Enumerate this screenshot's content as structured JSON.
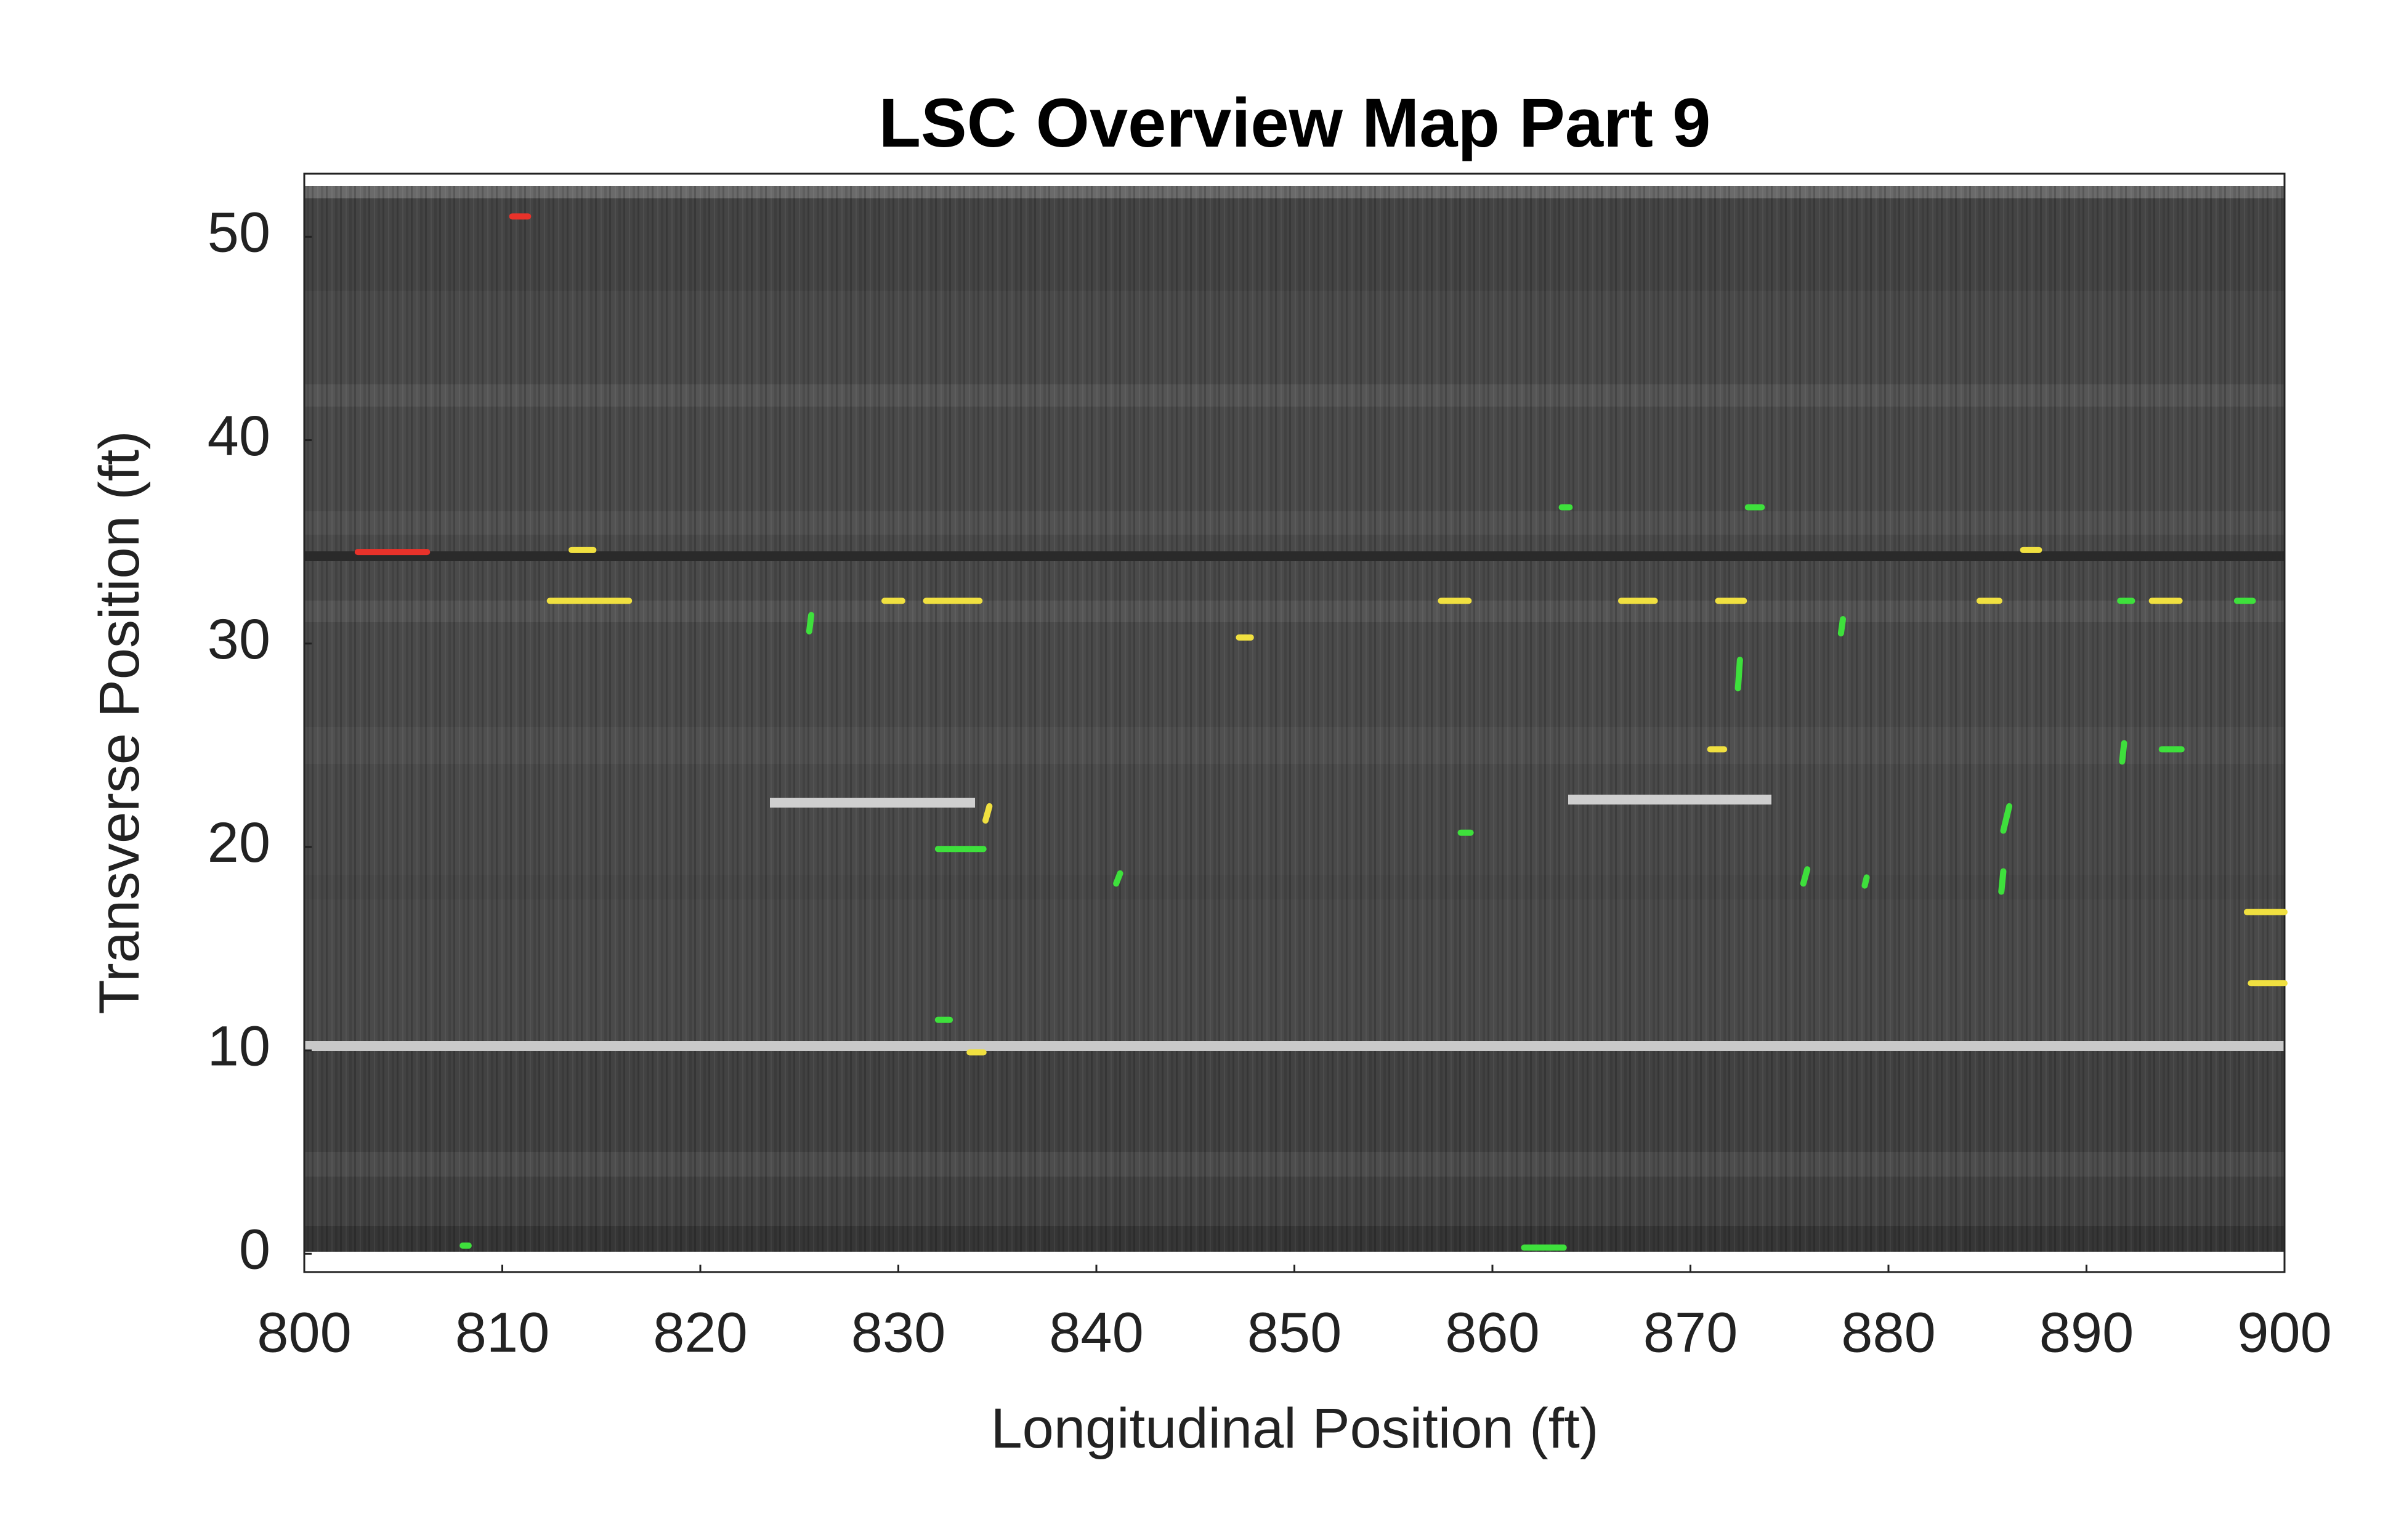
{
  "chart_data": {
    "type": "segments",
    "title": "LSC Overview Map Part 9",
    "x_label": "Longitudinal Position (ft)",
    "y_label": "Transverse Position (ft)",
    "xlim": [
      800,
      900
    ],
    "ylim": [
      -0.9,
      53.1
    ],
    "xticks": [
      800,
      810,
      820,
      830,
      840,
      850,
      860,
      870,
      880,
      890,
      900
    ],
    "yticks": [
      0,
      10,
      20,
      30,
      40,
      50
    ],
    "segments": [
      {
        "x": [
          810.5,
          811.3
        ],
        "y": [
          51,
          51
        ],
        "color": "#e8322a"
      },
      {
        "x": [
          802.7,
          806.2
        ],
        "y": [
          34.5,
          34.5
        ],
        "color": "#e8322a"
      },
      {
        "x": [
          813.5,
          814.6
        ],
        "y": [
          34.6,
          34.6
        ],
        "color": "#f0e040"
      },
      {
        "x": [
          812.4,
          816.4
        ],
        "y": [
          32.1,
          32.1
        ],
        "color": "#f0e040"
      },
      {
        "x": [
          829.3,
          830.2
        ],
        "y": [
          32.1,
          32.1
        ],
        "color": "#f0e040"
      },
      {
        "x": [
          831.4,
          834.1
        ],
        "y": [
          32.1,
          32.1
        ],
        "color": "#f0e040"
      },
      {
        "x": [
          825.5,
          825.6
        ],
        "y": [
          30.6,
          31.4
        ],
        "color": "#3ee03c"
      },
      {
        "x": [
          847.2,
          847.8
        ],
        "y": [
          30.3,
          30.3
        ],
        "color": "#f0e040"
      },
      {
        "x": [
          857.4,
          858.8
        ],
        "y": [
          32.1,
          32.1
        ],
        "color": "#f0e040"
      },
      {
        "x": [
          863.5,
          863.9
        ],
        "y": [
          36.7,
          36.7
        ],
        "color": "#3ee03c"
      },
      {
        "x": [
          872.9,
          873.6
        ],
        "y": [
          36.7,
          36.7
        ],
        "color": "#3ee03c"
      },
      {
        "x": [
          866.5,
          868.2
        ],
        "y": [
          32.1,
          32.1
        ],
        "color": "#f0e040"
      },
      {
        "x": [
          871.4,
          872.7
        ],
        "y": [
          32.1,
          32.1
        ],
        "color": "#f0e040"
      },
      {
        "x": [
          886.8,
          887.6
        ],
        "y": [
          34.6,
          34.6
        ],
        "color": "#f0e040"
      },
      {
        "x": [
          884.6,
          885.6
        ],
        "y": [
          32.1,
          32.1
        ],
        "color": "#f0e040"
      },
      {
        "x": [
          891.7,
          892.3
        ],
        "y": [
          32.1,
          32.1
        ],
        "color": "#3ee03c"
      },
      {
        "x": [
          893.3,
          894.7
        ],
        "y": [
          32.1,
          32.1
        ],
        "color": "#f0e040"
      },
      {
        "x": [
          897.6,
          898.4
        ],
        "y": [
          32.1,
          32.1
        ],
        "color": "#3ee03c"
      },
      {
        "x": [
          877.6,
          877.7
        ],
        "y": [
          30.5,
          31.2
        ],
        "color": "#3ee03c"
      },
      {
        "x": [
          872.4,
          872.5
        ],
        "y": [
          27.8,
          29.2
        ],
        "color": "#3ee03c"
      },
      {
        "x": [
          871.0,
          871.7
        ],
        "y": [
          24.8,
          24.8
        ],
        "color": "#f0e040"
      },
      {
        "x": [
          891.8,
          891.9
        ],
        "y": [
          24.2,
          25.1
        ],
        "color": "#3ee03c"
      },
      {
        "x": [
          893.8,
          894.8
        ],
        "y": [
          24.8,
          24.8
        ],
        "color": "#3ee03c"
      },
      {
        "x": [
          834.4,
          834.6
        ],
        "y": [
          21.3,
          22.0
        ],
        "color": "#f0e040"
      },
      {
        "x": [
          832.0,
          834.3
        ],
        "y": [
          19.9,
          19.9
        ],
        "color": "#3ee03c"
      },
      {
        "x": [
          858.4,
          858.9
        ],
        "y": [
          20.7,
          20.7
        ],
        "color": "#3ee03c"
      },
      {
        "x": [
          885.8,
          886.1
        ],
        "y": [
          20.8,
          22.0
        ],
        "color": "#3ee03c"
      },
      {
        "x": [
          841.0,
          841.2
        ],
        "y": [
          18.2,
          18.7
        ],
        "color": "#3ee03c"
      },
      {
        "x": [
          875.7,
          875.9
        ],
        "y": [
          18.2,
          18.9
        ],
        "color": "#3ee03c"
      },
      {
        "x": [
          878.8,
          878.9
        ],
        "y": [
          18.1,
          18.5
        ],
        "color": "#3ee03c"
      },
      {
        "x": [
          885.7,
          885.8
        ],
        "y": [
          17.8,
          18.8
        ],
        "color": "#3ee03c"
      },
      {
        "x": [
          898.1,
          900
        ],
        "y": [
          16.8,
          16.8
        ],
        "color": "#f0e040"
      },
      {
        "x": [
          898.3,
          900
        ],
        "y": [
          13.3,
          13.3
        ],
        "color": "#f0e040"
      },
      {
        "x": [
          832.0,
          832.6
        ],
        "y": [
          11.5,
          11.5
        ],
        "color": "#3ee03c"
      },
      {
        "x": [
          833.6,
          834.3
        ],
        "y": [
          9.9,
          9.9
        ],
        "color": "#f0e040"
      },
      {
        "x": [
          808.0,
          808.3
        ],
        "y": [
          0.4,
          0.4
        ],
        "color": "#3ee03c"
      },
      {
        "x": [
          861.6,
          863.6
        ],
        "y": [
          0.3,
          0.3
        ],
        "color": "#3ee03c"
      }
    ]
  }
}
